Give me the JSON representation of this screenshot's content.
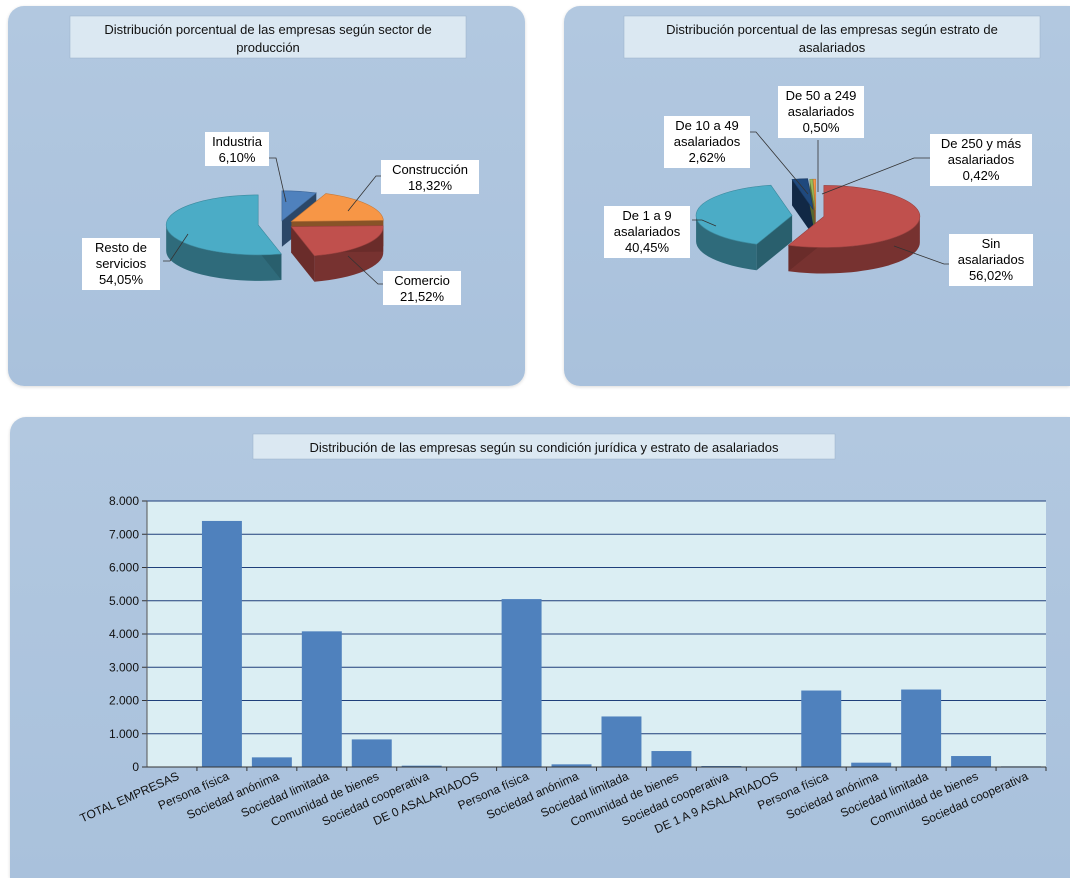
{
  "chart_data": [
    {
      "type": "pie",
      "title": "Distribución porcentual de las empresas según sector de producción",
      "title_lines": [
        "Distribución porcentual de las empresas según sector de",
        "producción"
      ],
      "slices": [
        {
          "label": "Industria",
          "value": 6.1,
          "text": "6,10%",
          "color": "#4f81bd"
        },
        {
          "label": "Construcción",
          "value": 18.32,
          "text": "18,32%",
          "color": "#f79646"
        },
        {
          "label": "Comercio",
          "value": 21.52,
          "text": "21,52%",
          "color": "#c0504d"
        },
        {
          "label": "Resto de servicios",
          "value": 54.05,
          "text": "54,05%",
          "color": "#4bacc6"
        }
      ]
    },
    {
      "type": "pie",
      "title": "Distribución porcentual de las empresas según estrato de asalariados",
      "title_lines": [
        "Distribución porcentual de las empresas según estrato de",
        "asalariados"
      ],
      "slices": [
        {
          "label": "Sin asalariados",
          "value": 56.02,
          "text": "56,02%",
          "color": "#c0504d"
        },
        {
          "label": "De 1 a 9 asalariados",
          "value": 40.45,
          "text": "40,45%",
          "color": "#4bacc6"
        },
        {
          "label": "De 10 a 49 asalariados",
          "value": 2.62,
          "text": "2,62%",
          "color": "#1f497d"
        },
        {
          "label": "De 50 a 249 asalariados",
          "value": 0.5,
          "text": "0,50%",
          "color": "#9bbb59"
        },
        {
          "label": "De 250 y más asalariados",
          "value": 0.42,
          "text": "0,42%",
          "color": "#f79646"
        }
      ]
    },
    {
      "type": "bar",
      "title": "Distribución de las empresas según su condición jurídica y estrato de asalariados",
      "categories": [
        "TOTAL EMPRESAS",
        "Persona física",
        "Sociedad anónima",
        "Sociedad limitada",
        "Comunidad de bienes",
        "Sociedad cooperativa",
        "DE 0 ASALARIADOS",
        "Persona física",
        "Sociedad anónima",
        "Sociedad limitada",
        "Comunidad de bienes",
        "Sociedad cooperativa",
        "DE 1 A 9 ASALARIADOS",
        "Persona física",
        "Sociedad anónima",
        "Sociedad limitada",
        "Comunidad de bienes",
        "Sociedad cooperativa"
      ],
      "values": [
        0,
        7400,
        290,
        4080,
        830,
        40,
        0,
        5050,
        80,
        1520,
        480,
        30,
        0,
        2300,
        130,
        2330,
        330,
        20
      ],
      "ylim": [
        0,
        8000
      ],
      "yticks": [
        0,
        1000,
        2000,
        3000,
        4000,
        5000,
        6000,
        7000,
        8000
      ],
      "ytick_labels": [
        "0",
        "1.000",
        "2.000",
        "3.000",
        "4.000",
        "5.000",
        "6.000",
        "7.000",
        "8.000"
      ],
      "grid": true,
      "bar_color": "#4f81bd"
    }
  ]
}
